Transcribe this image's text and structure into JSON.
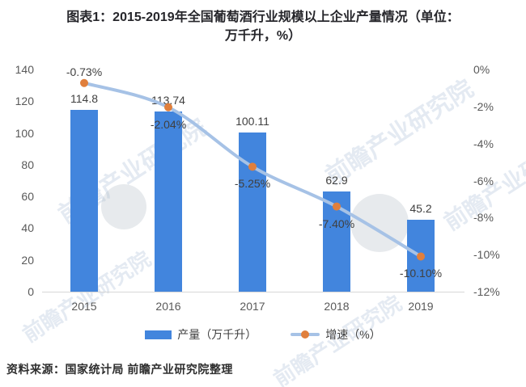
{
  "title": {
    "line1": "图表1：2015-2019年全国葡萄酒行业规模以上企业产量情况（单位：",
    "line2": "万千升，%）"
  },
  "source_note": "资料来源：国家统计局  前瞻产业研究院整理",
  "watermark": {
    "text": "前瞻产业研究院"
  },
  "colors": {
    "bar": "#4285DD",
    "line": "#A6C2E6",
    "marker": "#E07F3C",
    "axis_text": "#595959",
    "label_text": "#404040"
  },
  "legend": [
    {
      "label": "产量（万千升）",
      "type": "bar"
    },
    {
      "label": "增速（%）",
      "type": "line"
    }
  ],
  "chart_data": {
    "type": "bar+line",
    "title": "2015-2019年全国葡萄酒行业规模以上企业产量情况",
    "categories": [
      "2015",
      "2016",
      "2017",
      "2018",
      "2019"
    ],
    "series": [
      {
        "name": "产量（万千升）",
        "type": "bar",
        "axis": "left",
        "values": [
          114.8,
          113.74,
          100.11,
          62.9,
          45.2
        ],
        "labels": [
          "114.8",
          "113.74",
          "100.11",
          "62.9",
          "45.2"
        ]
      },
      {
        "name": "增速（%）",
        "type": "line",
        "axis": "right",
        "values": [
          -0.73,
          -2.04,
          -5.25,
          -7.4,
          -10.1
        ],
        "labels": [
          "-0.73%",
          "-2.04%",
          "-5.25%",
          "-7.40%",
          "-10.10%"
        ],
        "label_pos": [
          "above",
          "below",
          "below",
          "below",
          "below"
        ]
      }
    ],
    "left_axis": {
      "min": 0,
      "max": 140,
      "ticks": [
        "140",
        "120",
        "100",
        "80",
        "60",
        "40",
        "20",
        "0"
      ]
    },
    "right_axis": {
      "min": -12,
      "max": 0,
      "ticks": [
        "0%",
        "-2%",
        "-4%",
        "-6%",
        "-8%",
        "-10%",
        "-12%"
      ]
    },
    "grid": false,
    "legend_position": "bottom"
  }
}
